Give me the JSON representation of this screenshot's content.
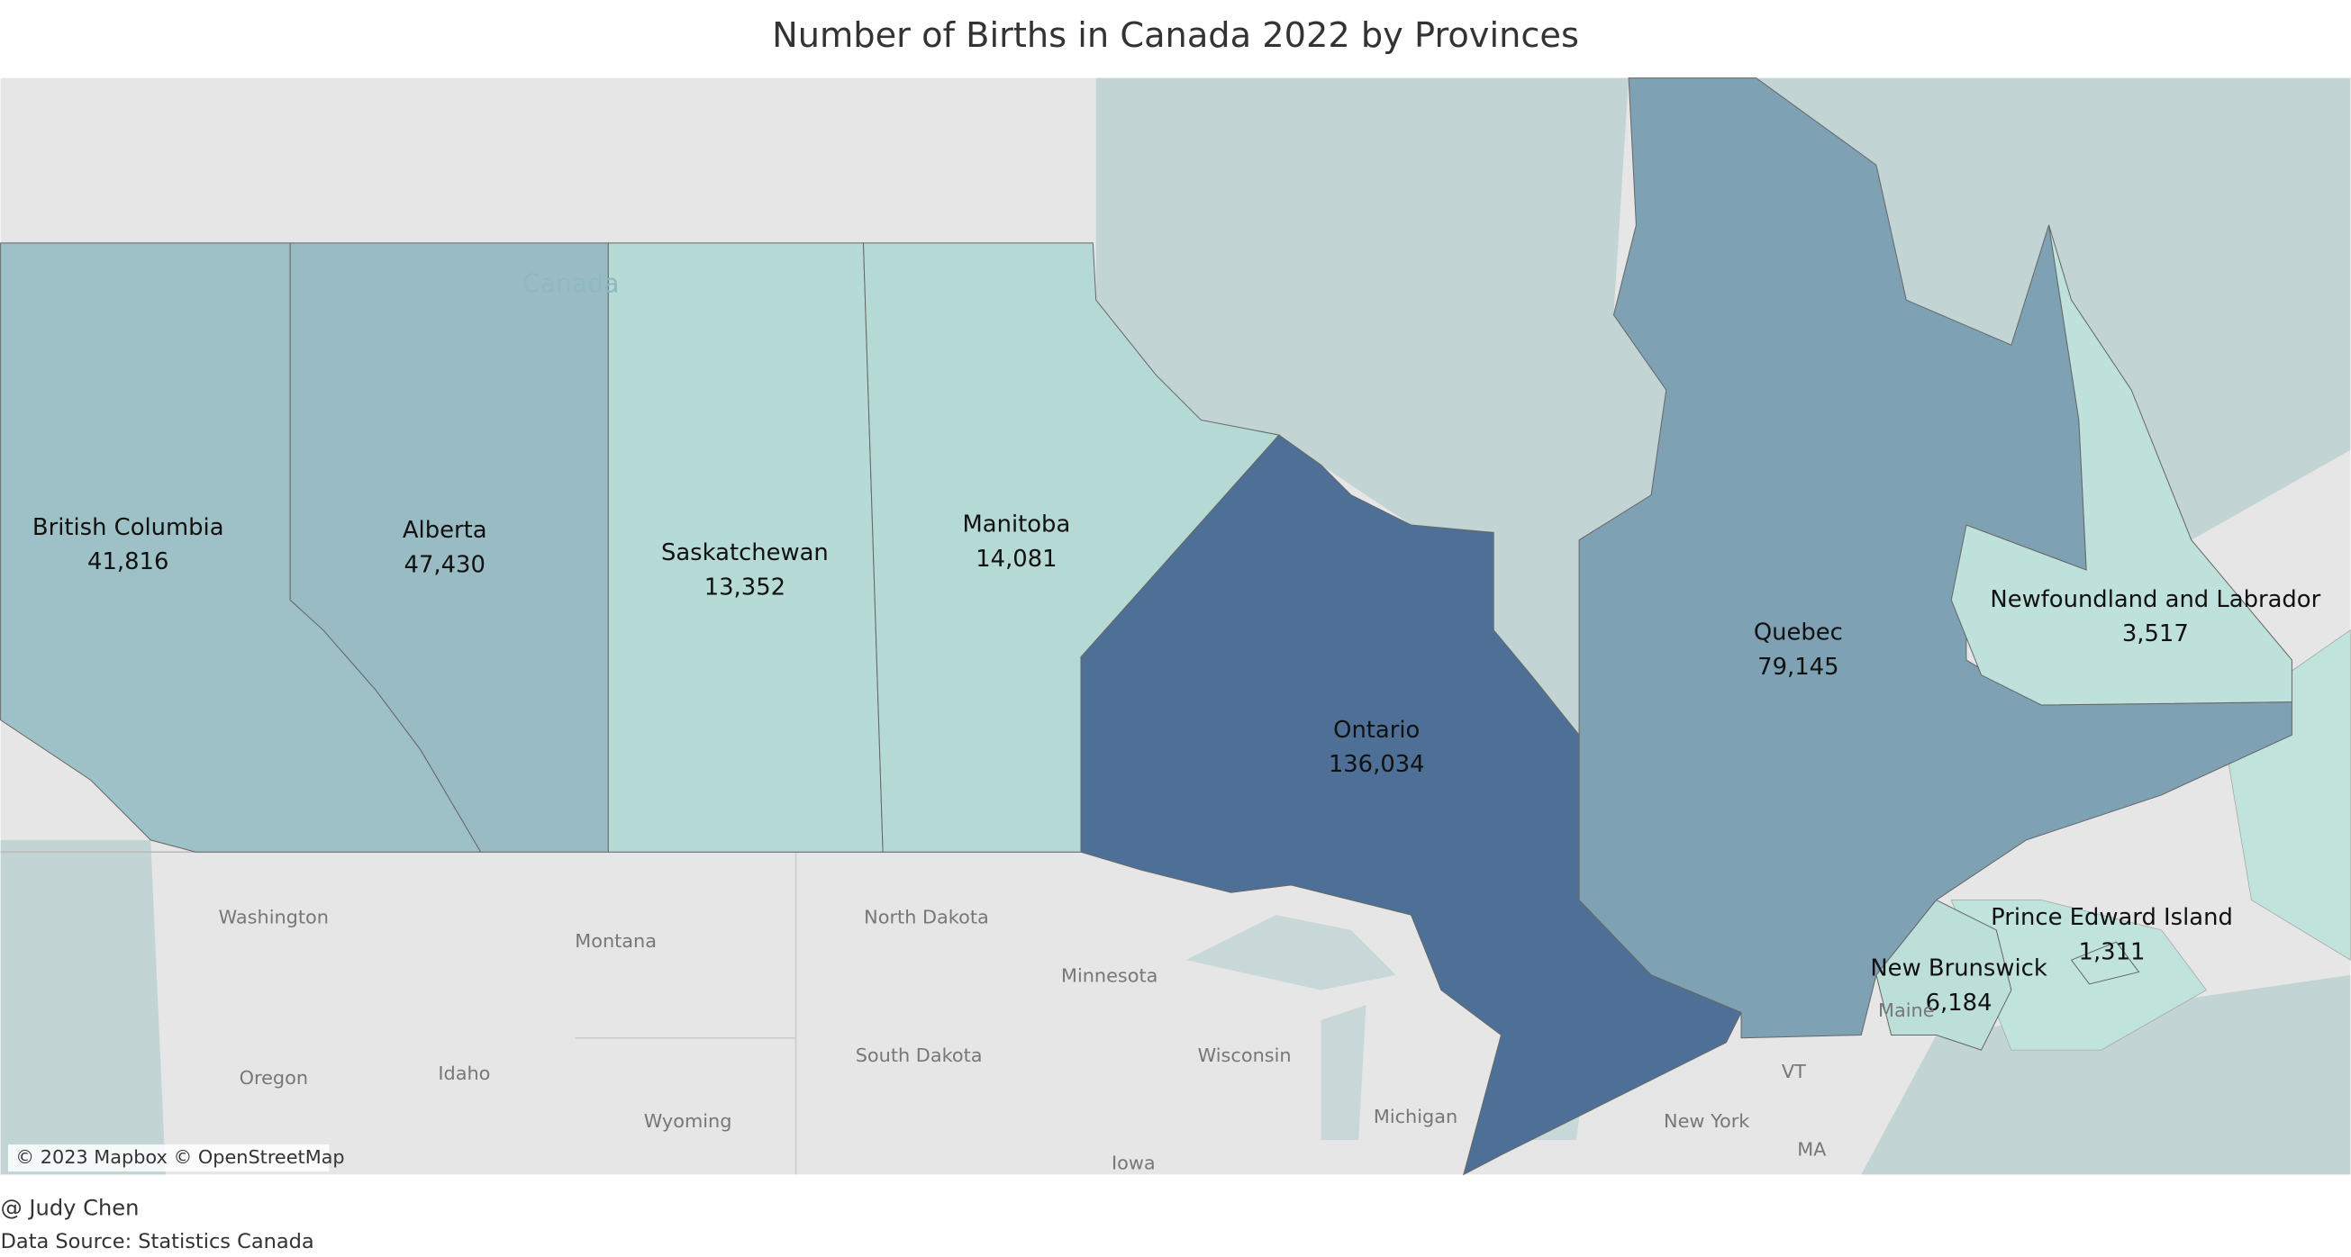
{
  "title": "Number of Births in Canada 2022 by Provinces",
  "color_low": "#c0e4dc",
  "color_high": "#4e7096",
  "regions": [
    {
      "name": "British Columbia",
      "value": 41816,
      "label": "41,816"
    },
    {
      "name": "Alberta",
      "value": 47430,
      "label": "47,430"
    },
    {
      "name": "Saskatchewan",
      "value": 13352,
      "label": "13,352"
    },
    {
      "name": "Manitoba",
      "value": 14081,
      "label": "14,081"
    },
    {
      "name": "Ontario",
      "value": 136034,
      "label": "136,034"
    },
    {
      "name": "Quebec",
      "value": 79145,
      "label": "79,145"
    },
    {
      "name": "Newfoundland and Labrador",
      "value": 3517,
      "label": "3,517"
    },
    {
      "name": "Prince Edward Island",
      "value": 1311,
      "label": "1,311"
    },
    {
      "name": "New Brunswick",
      "value": 6184,
      "label": "6,184"
    }
  ],
  "base_labels": [
    "Canada",
    "Washington",
    "Montana",
    "North Dakota",
    "Oregon",
    "Idaho",
    "Wyoming",
    "South Dakota",
    "Minnesota",
    "Wisconsin",
    "Michigan",
    "Iowa",
    "New York",
    "VT",
    "MA",
    "Maine"
  ],
  "attribution": "© 2023 Mapbox © OpenStreetMap",
  "author": "@ Judy Chen",
  "source": "Data Source: Statistics Canada"
}
